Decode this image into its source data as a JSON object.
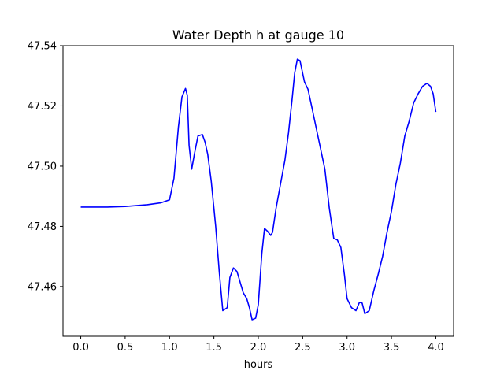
{
  "chart_data": {
    "type": "line",
    "title": "Water Depth h at gauge 10",
    "xlabel": "hours",
    "ylabel": "",
    "xlim": [
      -0.2,
      4.2
    ],
    "ylim": [
      47.4435,
      47.54
    ],
    "grid": false,
    "x_ticks": [
      0.0,
      0.5,
      1.0,
      1.5,
      2.0,
      2.5,
      3.0,
      3.5,
      4.0
    ],
    "x_tick_labels": [
      "0.0",
      "0.5",
      "1.0",
      "1.5",
      "2.0",
      "2.5",
      "3.0",
      "3.5",
      "4.0"
    ],
    "y_ticks": [
      47.46,
      47.48,
      47.5,
      47.52,
      47.54
    ],
    "y_tick_labels": [
      "47.46",
      "47.48",
      "47.50",
      "47.52",
      "47.54"
    ],
    "series": [
      {
        "color": "#0000ff",
        "x": [
          0.0,
          0.3,
          0.5,
          0.75,
          0.9,
          1.0,
          1.05,
          1.1,
          1.14,
          1.18,
          1.2,
          1.22,
          1.25,
          1.28,
          1.32,
          1.37,
          1.4,
          1.43,
          1.47,
          1.52,
          1.56,
          1.6,
          1.65,
          1.68,
          1.72,
          1.76,
          1.8,
          1.83,
          1.87,
          1.9,
          1.93,
          1.97,
          2.0,
          2.04,
          2.07,
          2.1,
          2.14,
          2.16,
          2.2,
          2.25,
          2.3,
          2.34,
          2.38,
          2.41,
          2.44,
          2.47,
          2.52,
          2.56,
          2.6,
          2.65,
          2.7,
          2.75,
          2.8,
          2.85,
          2.89,
          2.93,
          2.97,
          3.0,
          3.05,
          3.1,
          3.14,
          3.17,
          3.2,
          3.25,
          3.3,
          3.35,
          3.4,
          3.45,
          3.5,
          3.55,
          3.6,
          3.65,
          3.7,
          3.75,
          3.8,
          3.85,
          3.9,
          3.94,
          3.97,
          4.0
        ],
        "y": [
          47.4864,
          47.4864,
          47.4866,
          47.4872,
          47.4878,
          47.4888,
          47.496,
          47.513,
          47.523,
          47.5258,
          47.5235,
          47.507,
          47.499,
          47.504,
          47.51,
          47.5105,
          47.508,
          47.504,
          47.495,
          47.48,
          47.465,
          47.452,
          47.453,
          47.463,
          47.4662,
          47.465,
          47.461,
          47.458,
          47.456,
          47.453,
          47.449,
          47.4495,
          47.454,
          47.471,
          47.4793,
          47.4785,
          47.477,
          47.478,
          47.486,
          47.494,
          47.502,
          47.511,
          47.522,
          47.531,
          47.5355,
          47.535,
          47.528,
          47.5255,
          47.52,
          47.513,
          47.506,
          47.499,
          47.486,
          47.476,
          47.4755,
          47.473,
          47.464,
          47.456,
          47.453,
          47.452,
          47.4548,
          47.4545,
          47.451,
          47.452,
          47.4585,
          47.464,
          47.47,
          47.478,
          47.485,
          47.494,
          47.501,
          47.51,
          47.515,
          47.521,
          47.524,
          47.5265,
          47.5275,
          47.5265,
          47.524,
          47.518
        ]
      }
    ]
  }
}
